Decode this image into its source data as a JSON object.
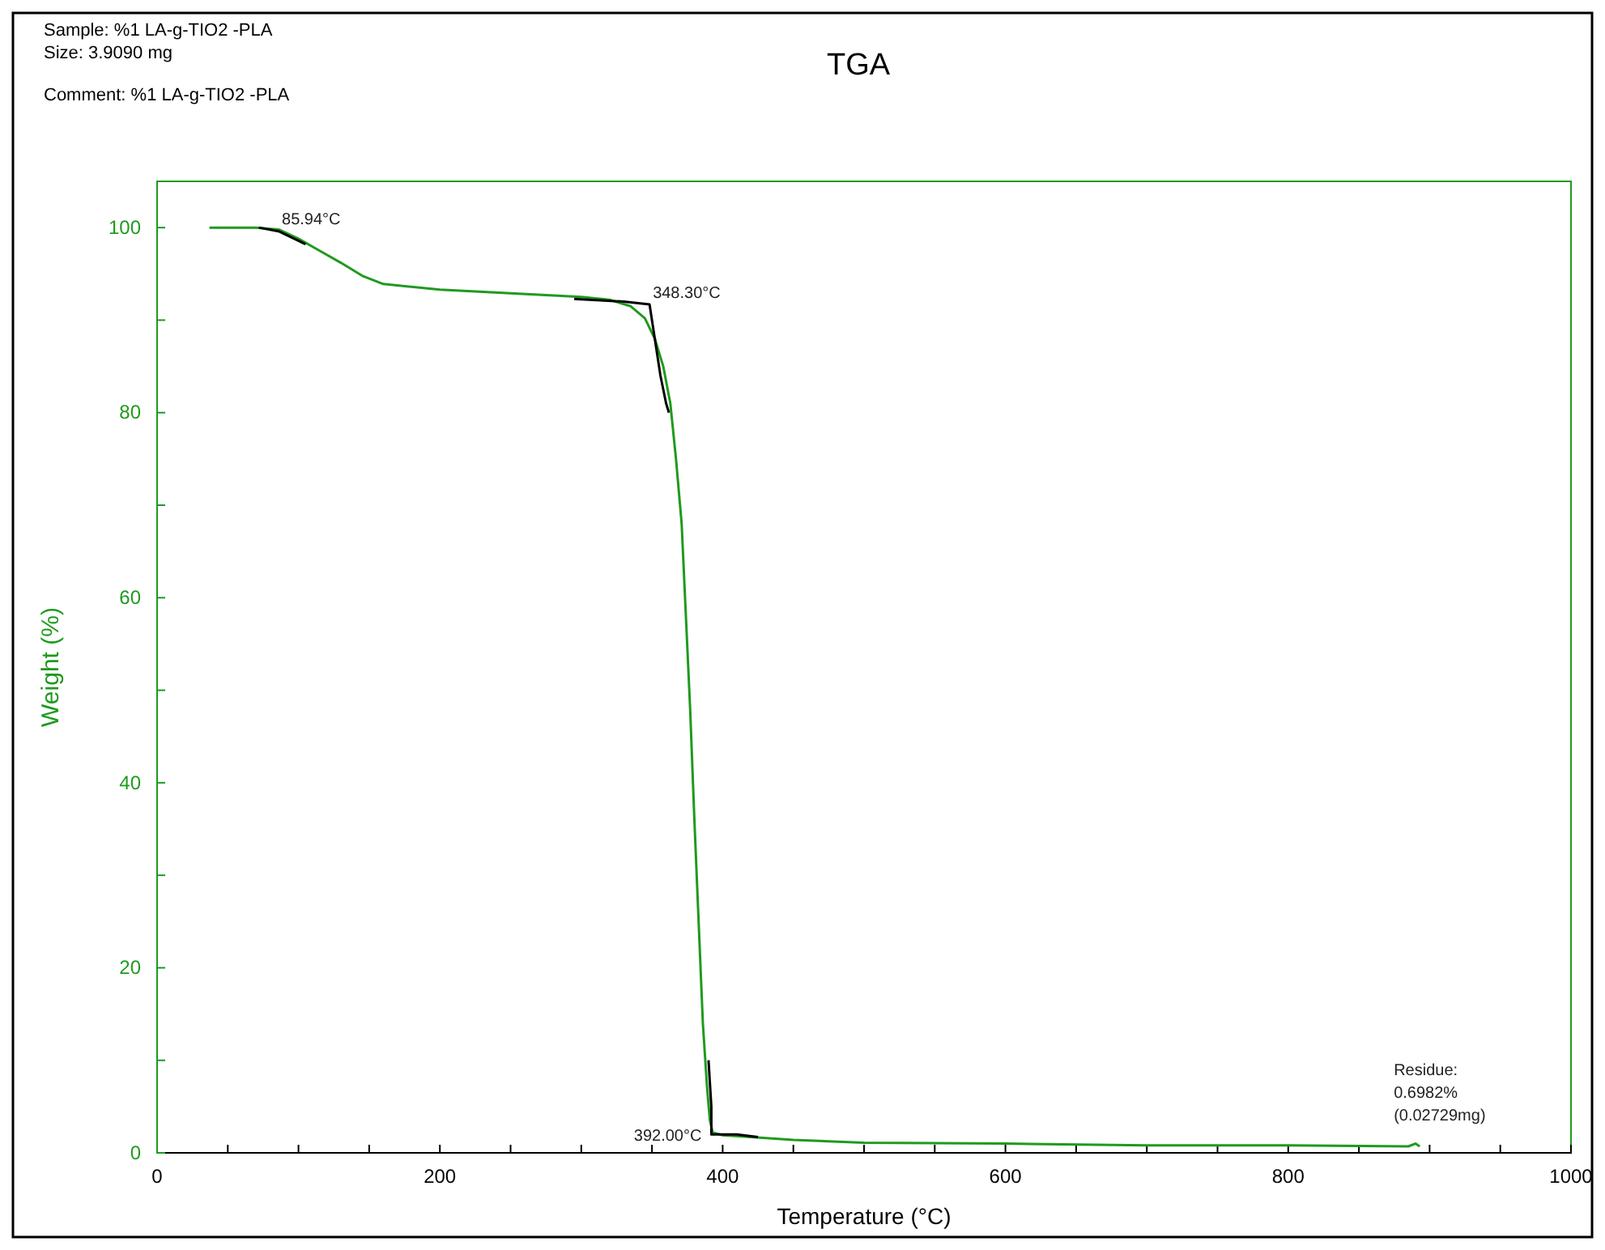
{
  "chart_data": {
    "type": "line",
    "title": "TGA",
    "xlabel": "Temperature (°C)",
    "ylabel": "Weight (%)",
    "annotations": [
      "Sample: %1 LA-g-TIO2 -PLA",
      "Size:  3.9090 mg",
      "Comment: %1 LA-g-TIO2 -PLA",
      {
        "text": "85.94°C",
        "x": 85.94,
        "y": 99.7
      },
      {
        "text": "348.30°C",
        "x": 348.3,
        "y": 91.7
      },
      {
        "text": "392.00°C",
        "x": 392,
        "y": 2
      },
      {
        "text": "Residue:\n0.6982%\n(0.02729mg)",
        "x": 893,
        "y": 0.7
      }
    ],
    "xlim": [
      0,
      1000
    ],
    "ylim": [
      0,
      105
    ],
    "xticks": [
      0,
      {
        "value": 50,
        "label": null
      },
      {
        "value": 100,
        "label": null
      },
      {
        "value": 150,
        "label": null
      },
      200,
      {
        "value": 250,
        "label": null
      },
      {
        "value": 300,
        "label": null
      },
      {
        "value": 350,
        "label": null
      },
      400,
      {
        "value": 450,
        "label": null
      },
      {
        "value": 500,
        "label": null
      },
      {
        "value": 550,
        "label": null
      },
      600,
      {
        "value": 650,
        "label": null
      },
      {
        "value": 700,
        "label": null
      },
      {
        "value": 750,
        "label": null
      },
      800,
      {
        "value": 850,
        "label": null
      },
      {
        "value": 900,
        "label": null
      },
      {
        "value": 950,
        "label": null
      },
      1000
    ],
    "yticks": [
      0,
      {
        "value": 10,
        "label": null
      },
      20,
      {
        "value": 30,
        "label": null
      },
      40,
      {
        "value": 50,
        "label": null
      },
      60,
      {
        "value": 70,
        "label": null
      },
      80,
      {
        "value": 90,
        "label": null
      },
      100
    ],
    "grid": false,
    "marker": "none",
    "line_style": "solid",
    "series": [
      {
        "color": "#1f9a1f",
        "x": [
          37,
          70,
          86,
          100,
          115,
          130,
          145,
          160,
          200,
          250,
          300,
          320,
          335,
          345,
          352,
          358,
          363,
          367,
          371,
          374,
          377,
          380,
          383,
          386,
          389,
          391,
          393,
          400,
          420,
          450,
          500,
          600,
          700,
          800,
          885,
          890,
          893
        ],
        "values": [
          100,
          100,
          99.8,
          98.8,
          97.5,
          96.2,
          94.8,
          93.9,
          93.3,
          92.9,
          92.5,
          92.2,
          91.5,
          90.2,
          88,
          85,
          81,
          75,
          68,
          58,
          48,
          36,
          25,
          14,
          7,
          3.5,
          2.2,
          1.9,
          1.7,
          1.4,
          1.1,
          1.0,
          0.8,
          0.8,
          0.7,
          1.0,
          0.7
        ]
      },
      {
        "color": "#000000",
        "x": [
          72,
          86,
          105
        ],
        "values": [
          100,
          99.6,
          98.2
        ]
      },
      {
        "color": "#000000",
        "x": [
          295,
          330,
          348.3,
          352,
          356,
          360,
          362
        ],
        "values": [
          92.3,
          92.0,
          91.7,
          88,
          84,
          81,
          80
        ]
      },
      {
        "color": "#000000",
        "x": [
          390,
          392,
          392,
          410,
          425
        ],
        "values": [
          10,
          5,
          2,
          2,
          1.7
        ]
      }
    ]
  }
}
